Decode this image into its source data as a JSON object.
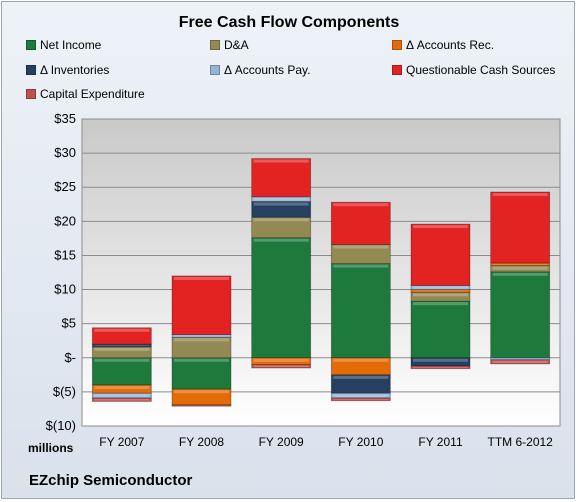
{
  "chart_data": {
    "type": "bar",
    "stacked": true,
    "title": "Free Cash Flow Components",
    "ylabel": "millions",
    "footer": "EZchip Semiconductor",
    "categories": [
      "FY 2007",
      "FY 2008",
      "FY 2009",
      "FY 2010",
      "FY 2011",
      "TTM 6-2012"
    ],
    "ylim": [
      -10,
      35
    ],
    "yticks": [
      -10,
      -5,
      0,
      5,
      10,
      15,
      20,
      25,
      30,
      35
    ],
    "ytick_labels": [
      "$(10)",
      "$(5)",
      "$-",
      "$5",
      "$10",
      "$15",
      "$20",
      "$25",
      "$30",
      "$35"
    ],
    "grid": true,
    "legend_position": "top",
    "series": [
      {
        "name": "Net Income",
        "color": "#1e7a3c",
        "values": [
          -4.0,
          -4.6,
          17.6,
          13.8,
          8.3,
          12.6
        ]
      },
      {
        "name": "D&A",
        "color": "#938953",
        "values": [
          1.6,
          3.0,
          3.0,
          2.8,
          1.3,
          0.9
        ]
      },
      {
        "name": "Δ Accounts Rec.",
        "color": "#e36c09",
        "values": [
          -1.2,
          -2.3,
          -1.0,
          -2.5,
          0.4,
          0.4
        ]
      },
      {
        "name": "Δ Inventories",
        "color": "#254061",
        "values": [
          0.4,
          0.0,
          2.3,
          -2.7,
          -1.2,
          0.0
        ]
      },
      {
        "name": "Δ Accounts Pay.",
        "color": "#95b3d7",
        "values": [
          -0.7,
          0.4,
          0.7,
          -0.7,
          0.6,
          -0.3
        ]
      },
      {
        "name": "Questionable Cash Sources",
        "color": "#e32222",
        "values": [
          2.4,
          8.6,
          5.6,
          6.2,
          9.0,
          10.4
        ]
      },
      {
        "name": "Capital Expenditure",
        "color": "#c0504d",
        "values": [
          -0.5,
          -0.2,
          -0.5,
          -0.4,
          -0.4,
          -0.6
        ]
      }
    ]
  }
}
